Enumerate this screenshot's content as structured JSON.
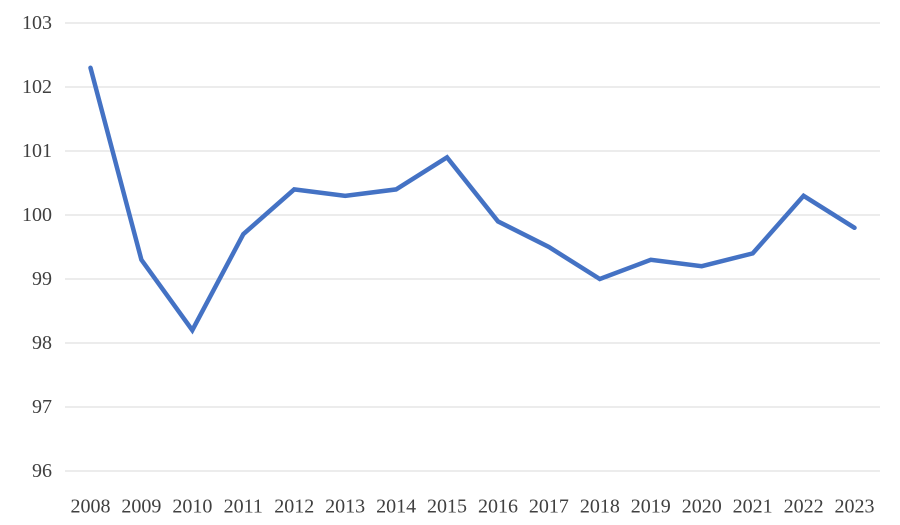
{
  "chart_data": {
    "type": "line",
    "title": "",
    "xlabel": "",
    "ylabel": "",
    "categories": [
      "2008",
      "2009",
      "2010",
      "2011",
      "2012",
      "2013",
      "2014",
      "2015",
      "2016",
      "2017",
      "2018",
      "2019",
      "2020",
      "2021",
      "2022",
      "2023"
    ],
    "values": [
      102.3,
      99.3,
      98.2,
      99.7,
      100.4,
      100.3,
      100.4,
      100.9,
      99.9,
      99.5,
      99.0,
      99.3,
      99.2,
      99.4,
      100.3,
      99.8
    ],
    "ylim": [
      96,
      103
    ],
    "ytick_step": 1,
    "yticks": [
      "96",
      "97",
      "98",
      "99",
      "100",
      "101",
      "102",
      "103"
    ],
    "grid": "horizontal-only",
    "legend": "none",
    "line_color": "#4472C4",
    "gridline_color": "#D9D9D9",
    "label_color": "#404040"
  }
}
